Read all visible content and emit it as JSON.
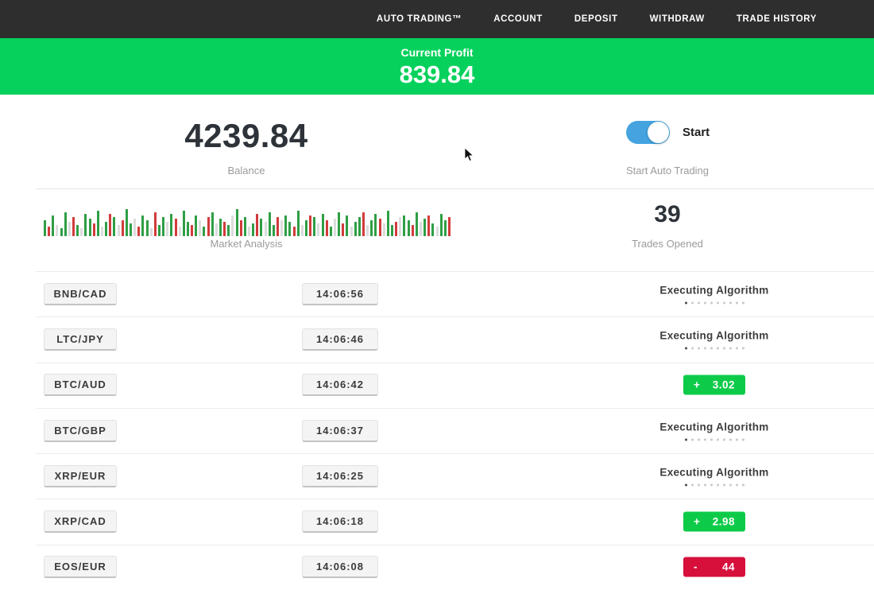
{
  "nav": {
    "items": [
      {
        "label": "AUTO TRADING™"
      },
      {
        "label": "ACCOUNT"
      },
      {
        "label": "DEPOSIT"
      },
      {
        "label": "WITHDRAW"
      },
      {
        "label": "TRADE HISTORY"
      }
    ]
  },
  "banner": {
    "label": "Current Profit",
    "value": "839.84",
    "bg_color": "#06d15c"
  },
  "stats": {
    "balance": {
      "value": "4239.84",
      "label": "Balance"
    },
    "auto_trading": {
      "toggle_label": "Start",
      "toggle_state": "on",
      "label": "Start Auto Trading",
      "toggle_color": "#45a4e0"
    },
    "market": {
      "label": "Market Analysis",
      "bar_colors": {
        "g": "#2f9e44",
        "r": "#d23b3b",
        "e": "#dcdcdc"
      },
      "bars": [
        [
          "g",
          20
        ],
        [
          "r",
          12
        ],
        [
          "g",
          26
        ],
        [
          "e",
          14
        ],
        [
          "g",
          10
        ],
        [
          "g",
          30
        ],
        [
          "e",
          18
        ],
        [
          "r",
          24
        ],
        [
          "g",
          14
        ],
        [
          "e",
          10
        ],
        [
          "g",
          28
        ],
        [
          "g",
          22
        ],
        [
          "r",
          16
        ],
        [
          "g",
          32
        ],
        [
          "e",
          12
        ],
        [
          "g",
          18
        ],
        [
          "r",
          28
        ],
        [
          "g",
          24
        ],
        [
          "e",
          14
        ],
        [
          "r",
          20
        ],
        [
          "g",
          34
        ],
        [
          "g",
          16
        ],
        [
          "e",
          22
        ],
        [
          "r",
          12
        ],
        [
          "g",
          26
        ],
        [
          "g",
          20
        ],
        [
          "e",
          10
        ],
        [
          "r",
          30
        ],
        [
          "g",
          14
        ],
        [
          "g",
          24
        ],
        [
          "e",
          18
        ],
        [
          "g",
          28
        ],
        [
          "r",
          22
        ],
        [
          "e",
          12
        ],
        [
          "g",
          32
        ],
        [
          "g",
          18
        ],
        [
          "r",
          14
        ],
        [
          "g",
          26
        ],
        [
          "e",
          20
        ],
        [
          "g",
          12
        ],
        [
          "r",
          24
        ],
        [
          "g",
          30
        ],
        [
          "e",
          16
        ],
        [
          "g",
          22
        ],
        [
          "r",
          18
        ],
        [
          "g",
          14
        ],
        [
          "e",
          26
        ],
        [
          "g",
          34
        ],
        [
          "r",
          20
        ],
        [
          "g",
          24
        ],
        [
          "e",
          12
        ],
        [
          "g",
          16
        ],
        [
          "r",
          28
        ],
        [
          "g",
          22
        ],
        [
          "e",
          18
        ],
        [
          "g",
          30
        ],
        [
          "g",
          14
        ],
        [
          "r",
          24
        ],
        [
          "e",
          20
        ],
        [
          "g",
          26
        ],
        [
          "g",
          18
        ],
        [
          "r",
          12
        ],
        [
          "g",
          32
        ],
        [
          "e",
          14
        ],
        [
          "g",
          20
        ],
        [
          "r",
          26
        ],
        [
          "g",
          24
        ],
        [
          "e",
          16
        ],
        [
          "g",
          28
        ],
        [
          "r",
          20
        ],
        [
          "g",
          12
        ],
        [
          "e",
          22
        ],
        [
          "g",
          30
        ],
        [
          "r",
          16
        ],
        [
          "g",
          26
        ],
        [
          "e",
          12
        ],
        [
          "g",
          18
        ],
        [
          "g",
          24
        ],
        [
          "r",
          30
        ],
        [
          "e",
          14
        ],
        [
          "g",
          20
        ],
        [
          "g",
          28
        ],
        [
          "r",
          22
        ],
        [
          "e",
          16
        ],
        [
          "g",
          32
        ],
        [
          "g",
          14
        ],
        [
          "r",
          18
        ],
        [
          "e",
          24
        ],
        [
          "g",
          26
        ],
        [
          "g",
          20
        ],
        [
          "r",
          14
        ],
        [
          "g",
          30
        ],
        [
          "e",
          18
        ],
        [
          "g",
          22
        ],
        [
          "r",
          26
        ],
        [
          "g",
          16
        ],
        [
          "e",
          12
        ],
        [
          "g",
          28
        ],
        [
          "g",
          20
        ],
        [
          "r",
          24
        ]
      ]
    },
    "trades_opened": {
      "value": "39",
      "label": "Trades Opened"
    }
  },
  "trades_list": {
    "executing_label": "Executing Algorithm",
    "executing_dots": 10,
    "profit_color": "#0dcb49",
    "loss_color": "#d60f3b",
    "rows": [
      {
        "pair": "BNB/CAD",
        "time": "14:06:56",
        "status": "executing"
      },
      {
        "pair": "LTC/JPY",
        "time": "14:06:46",
        "status": "executing"
      },
      {
        "pair": "BTC/AUD",
        "time": "14:06:42",
        "status": "profit",
        "sign": "+",
        "amount": "3.02"
      },
      {
        "pair": "BTC/GBP",
        "time": "14:06:37",
        "status": "executing"
      },
      {
        "pair": "XRP/EUR",
        "time": "14:06:25",
        "status": "executing"
      },
      {
        "pair": "XRP/CAD",
        "time": "14:06:18",
        "status": "profit",
        "sign": "+",
        "amount": "2.98"
      },
      {
        "pair": "EOS/EUR",
        "time": "14:06:08",
        "status": "loss",
        "sign": "-",
        "amount": "44"
      }
    ]
  }
}
